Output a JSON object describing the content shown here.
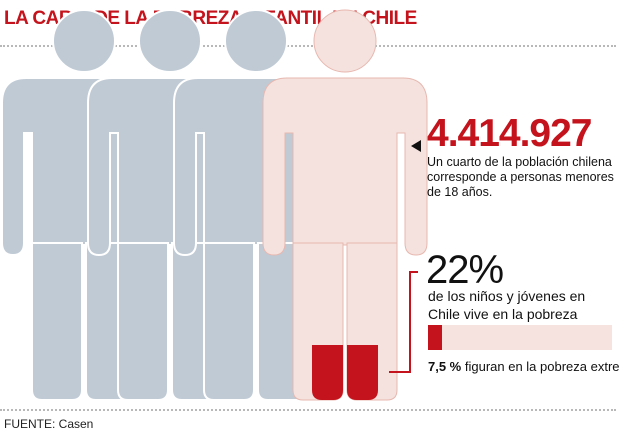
{
  "title": "LA CARA  DE LA POBREZA INFANTIL EN CHILE",
  "figures": {
    "count": 4,
    "gray_color": "#bfcad5",
    "pink_color": "#f5e2de",
    "red_color": "#c4131c"
  },
  "stat1": {
    "number": "4.414.927",
    "text": "Un cuarto de la población chilena corresponde a personas menores de 18 años."
  },
  "stat2": {
    "percent": "22%",
    "text": "de los niños y jóvenes en Chile vive en la pobreza",
    "extreme_percent": "7,5 %",
    "extreme_text": " figuran en la pobreza extrema",
    "extreme_share": 0.075
  },
  "source": "FUENTE: Casen"
}
